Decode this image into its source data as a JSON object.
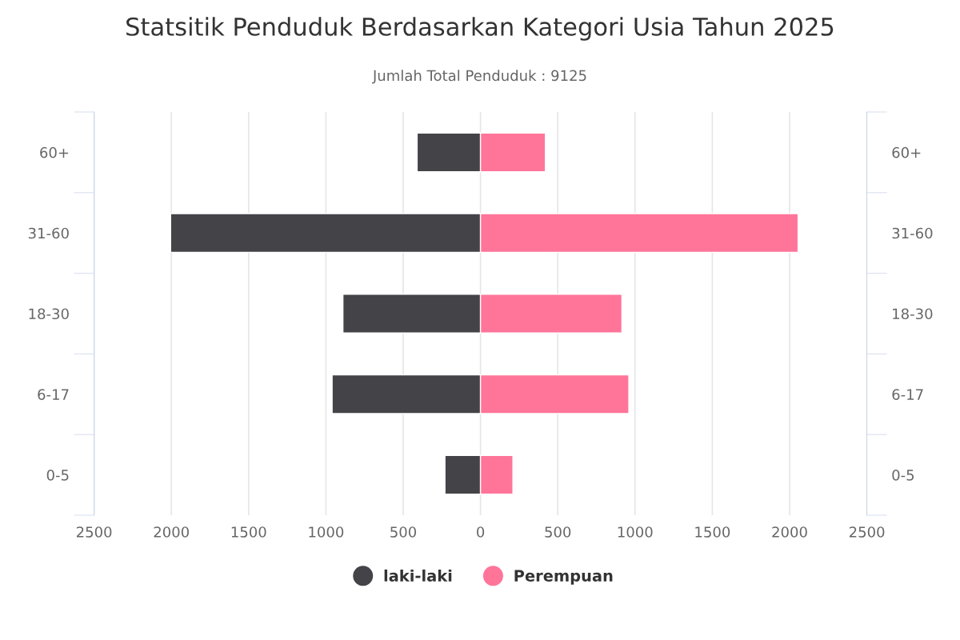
{
  "chart_data": {
    "type": "bar",
    "orientation": "horizontal",
    "title": "Statsitik Penduduk Berdasarkan Kategori Usia Tahun 2025",
    "subtitle": "Jumlah Total Penduduk : 9125",
    "categories": [
      "60+",
      "31-60",
      "18-30",
      "6-17",
      "0-5"
    ],
    "series": [
      {
        "name": "laki-laki",
        "color": "#434348",
        "values": [
          -410,
          -2005,
          -890,
          -960,
          -230
        ]
      },
      {
        "name": "Perempuan",
        "color": "#ff7599",
        "values": [
          420,
          2055,
          915,
          960,
          210
        ]
      }
    ],
    "xlim": [
      -2500,
      2500
    ],
    "xticks": [
      {
        "value": -2500,
        "label": "2500"
      },
      {
        "value": -2000,
        "label": "2000"
      },
      {
        "value": -1500,
        "label": "1500"
      },
      {
        "value": -1000,
        "label": "1000"
      },
      {
        "value": -500,
        "label": "500"
      },
      0,
      500,
      1000,
      1500,
      2000,
      2500
    ],
    "stacked": true,
    "grid": "x",
    "legend": "bottom",
    "marker": "circle"
  }
}
